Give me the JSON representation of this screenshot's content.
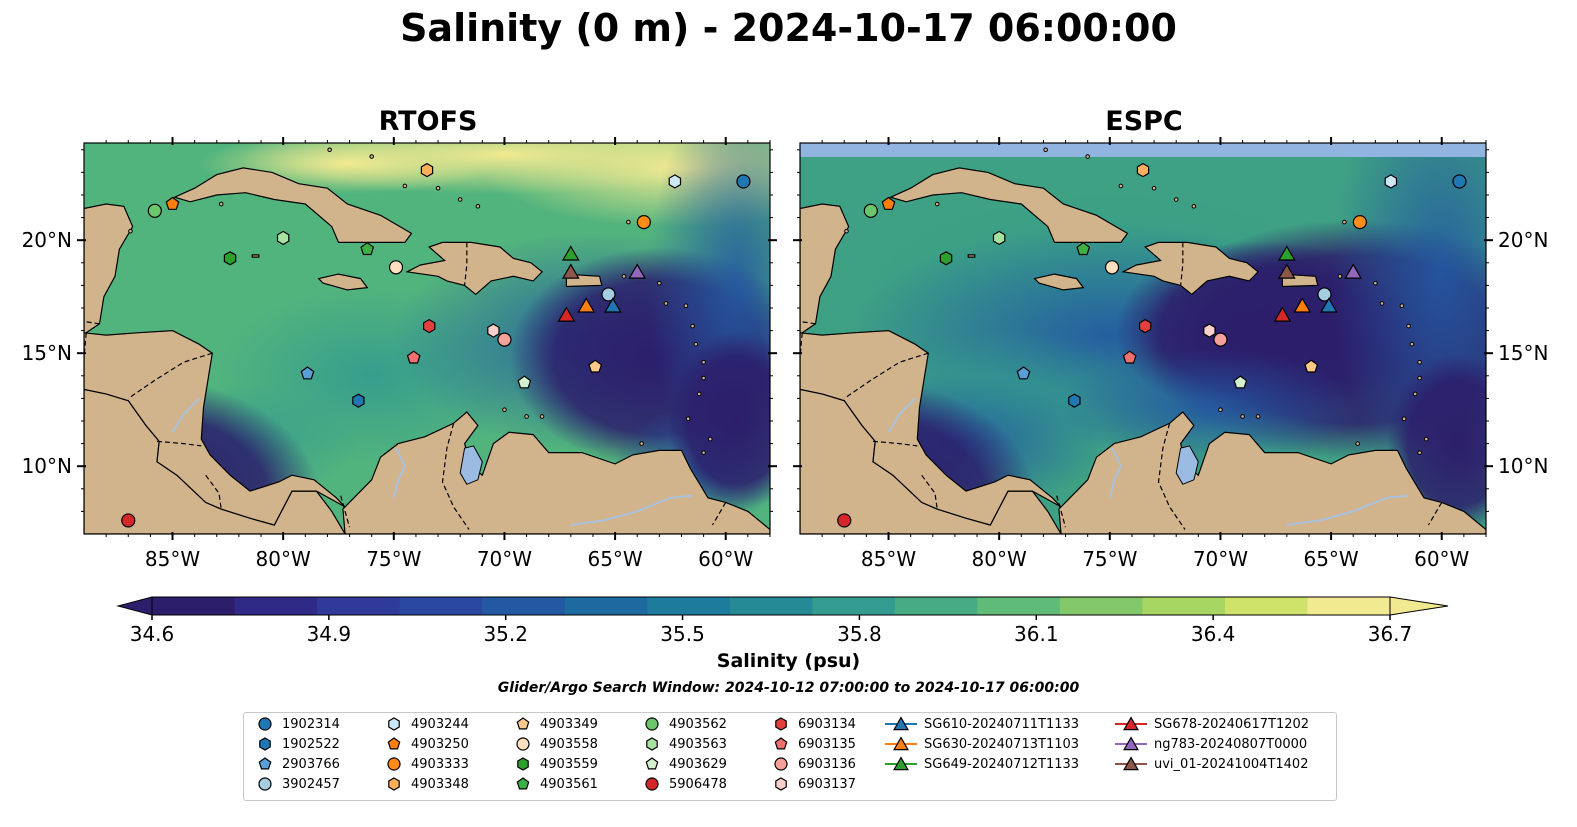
{
  "title": "Salinity (0 m) - 2024-10-17 06:00:00",
  "panels": [
    {
      "name": "RTOFS"
    },
    {
      "name": "ESPC"
    }
  ],
  "lon_ticks": [
    "85°W",
    "80°W",
    "75°W",
    "70°W",
    "65°W",
    "60°W"
  ],
  "lat_ticks": [
    "20°N",
    "15°N",
    "10°N"
  ],
  "colorbar": {
    "label": "Salinity (psu)",
    "ticks": [
      "34.6",
      "34.9",
      "35.2",
      "35.5",
      "35.8",
      "36.1",
      "36.4",
      "36.7"
    ],
    "colors": [
      "#2c1e6b",
      "#2f2a86",
      "#2f3a9a",
      "#2a48a2",
      "#2358a2",
      "#1d6aa0",
      "#1d7b9c",
      "#258a96",
      "#339b8f",
      "#45ac84",
      "#5fbb78",
      "#82c86a",
      "#a7d663",
      "#cfe26a",
      "#f2ea90"
    ]
  },
  "search_window": "Glider/Argo Search Window: 2024-10-12 07:00:00 to 2024-10-17 06:00:00",
  "legend": [
    {
      "label": "1902314",
      "marker": "circle",
      "color": "#1f77b4"
    },
    {
      "label": "1902522",
      "marker": "hexagon",
      "color": "#1f77b4"
    },
    {
      "label": "2903766",
      "marker": "pentagon",
      "color": "#5a9fd6"
    },
    {
      "label": "3902457",
      "marker": "circle",
      "color": "#a6cee3"
    },
    {
      "label": "4903244",
      "marker": "hexagon",
      "color": "#cde8f5"
    },
    {
      "label": "4903250",
      "marker": "pentagon",
      "color": "#ff7f0e"
    },
    {
      "label": "4903333",
      "marker": "circle",
      "color": "#ff8c1a"
    },
    {
      "label": "4903348",
      "marker": "hexagon",
      "color": "#ffae5c"
    },
    {
      "label": "4903349",
      "marker": "pentagon",
      "color": "#ffc98a"
    },
    {
      "label": "4903558",
      "marker": "circle",
      "color": "#ffe0c0"
    },
    {
      "label": "4903559",
      "marker": "hexagon",
      "color": "#2ca02c"
    },
    {
      "label": "4903561",
      "marker": "pentagon",
      "color": "#3cb043"
    },
    {
      "label": "4903562",
      "marker": "circle",
      "color": "#6cc76c"
    },
    {
      "label": "4903563",
      "marker": "hexagon",
      "color": "#a6e3a1"
    },
    {
      "label": "4903629",
      "marker": "pentagon",
      "color": "#d4f2cf"
    },
    {
      "label": "5906478",
      "marker": "circle",
      "color": "#d62728"
    },
    {
      "label": "6903134",
      "marker": "hexagon",
      "color": "#e0413f"
    },
    {
      "label": "6903135",
      "marker": "pentagon",
      "color": "#f07170"
    },
    {
      "label": "6903136",
      "marker": "circle",
      "color": "#f4a09b"
    },
    {
      "label": "6903137",
      "marker": "hexagon",
      "color": "#fcd0cc"
    },
    {
      "label": "SG610-20240711T1133",
      "marker": "triangle",
      "color": "#1f77b4"
    },
    {
      "label": "SG630-20240713T1103",
      "marker": "triangle",
      "color": "#ff7f0e"
    },
    {
      "label": "SG649-20240712T1133",
      "marker": "triangle",
      "color": "#2ca02c"
    },
    {
      "label": "SG678-20240617T1202",
      "marker": "triangle",
      "color": "#d62728"
    },
    {
      "label": "ng783-20240807T0000",
      "marker": "triangle",
      "color": "#9467bd"
    },
    {
      "label": "uvi_01-20241004T1402",
      "marker": "triangle",
      "color": "#8c564b"
    }
  ],
  "observations": [
    {
      "id": "1902314",
      "lon": -59.2,
      "lat": 22.6
    },
    {
      "id": "1902522",
      "lon": -76.6,
      "lat": 12.9
    },
    {
      "id": "2903766",
      "lon": -78.9,
      "lat": 14.1
    },
    {
      "id": "3902457",
      "lon": -65.3,
      "lat": 17.6
    },
    {
      "id": "4903244",
      "lon": -62.3,
      "lat": 22.6
    },
    {
      "id": "4903250",
      "lon": -85.0,
      "lat": 21.6
    },
    {
      "id": "4903333",
      "lon": -63.7,
      "lat": 20.8
    },
    {
      "id": "4903348",
      "lon": -73.5,
      "lat": 23.1
    },
    {
      "id": "4903349",
      "lon": -65.9,
      "lat": 14.4
    },
    {
      "id": "4903558",
      "lon": -74.9,
      "lat": 18.8
    },
    {
      "id": "4903559",
      "lon": -82.4,
      "lat": 19.2
    },
    {
      "id": "4903561",
      "lon": -76.2,
      "lat": 19.6
    },
    {
      "id": "4903562",
      "lon": -85.8,
      "lat": 21.3
    },
    {
      "id": "4903563",
      "lon": -80.0,
      "lat": 20.1
    },
    {
      "id": "4903629",
      "lon": -69.1,
      "lat": 13.7
    },
    {
      "id": "5906478",
      "lon": -87.0,
      "lat": 7.6
    },
    {
      "id": "6903134",
      "lon": -73.4,
      "lat": 16.2
    },
    {
      "id": "6903135",
      "lon": -74.1,
      "lat": 14.8
    },
    {
      "id": "6903136",
      "lon": -70.0,
      "lat": 15.6
    },
    {
      "id": "6903137",
      "lon": -70.5,
      "lat": 16.0
    },
    {
      "id": "SG610-20240711T1133",
      "lon": -65.1,
      "lat": 17.1
    },
    {
      "id": "SG630-20240713T1103",
      "lon": -66.3,
      "lat": 17.1
    },
    {
      "id": "SG649-20240712T1133",
      "lon": -67.0,
      "lat": 19.4
    },
    {
      "id": "SG678-20240617T1202",
      "lon": -67.2,
      "lat": 16.7
    },
    {
      "id": "ng783-20240807T0000",
      "lon": -64.0,
      "lat": 18.6
    },
    {
      "id": "uvi_01-20241004T1402",
      "lon": -67.0,
      "lat": 18.6
    }
  ]
}
